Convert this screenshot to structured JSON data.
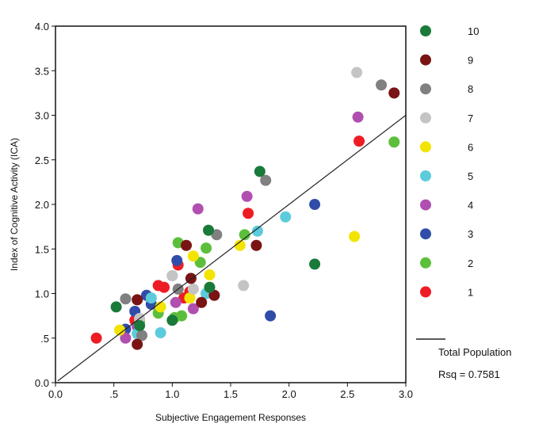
{
  "chart_data": {
    "type": "scatter",
    "xlabel": "Subjective Engagement Responses",
    "ylabel": "Index of Cognitive Activity (ICA)",
    "xlim": [
      0,
      3
    ],
    "ylim": [
      0,
      4
    ],
    "xticks": [
      {
        "v": 0,
        "label": "0.0"
      },
      {
        "v": 0.5,
        "label": ".5"
      },
      {
        "v": 1,
        "label": "1.0"
      },
      {
        "v": 1.5,
        "label": "1.5"
      },
      {
        "v": 2,
        "label": "2.0"
      },
      {
        "v": 2.5,
        "label": "2.5"
      },
      {
        "v": 3,
        "label": "3.0"
      }
    ],
    "yticks": [
      {
        "v": 0,
        "label": "0.0"
      },
      {
        "v": 0.5,
        "label": ".5"
      },
      {
        "v": 1,
        "label": "1.0"
      },
      {
        "v": 1.5,
        "label": "1.5"
      },
      {
        "v": 2,
        "label": "2.0"
      },
      {
        "v": 2.5,
        "label": "2.5"
      },
      {
        "v": 3,
        "label": "3.0"
      },
      {
        "v": 3.5,
        "label": "3.5"
      },
      {
        "v": 4,
        "label": "4.0"
      }
    ],
    "grid": false,
    "legend_position": "right",
    "series": [
      {
        "name": "10",
        "color": "#1a7a3a",
        "points": [
          [
            0.52,
            0.85
          ],
          [
            1.75,
            2.37
          ],
          [
            2.22,
            1.33
          ],
          [
            1.31,
            1.71
          ],
          [
            1.32,
            1.07
          ],
          [
            1.0,
            0.7
          ],
          [
            0.72,
            0.64
          ]
        ]
      },
      {
        "name": "9",
        "color": "#7a1414",
        "points": [
          [
            2.9,
            3.25
          ],
          [
            0.7,
            0.43
          ],
          [
            0.7,
            0.93
          ],
          [
            1.12,
            1.54
          ],
          [
            1.72,
            1.54
          ],
          [
            1.36,
            0.98
          ],
          [
            1.16,
            1.17
          ],
          [
            1.25,
            0.9
          ]
        ]
      },
      {
        "name": "8",
        "color": "#808080",
        "points": [
          [
            2.79,
            3.34
          ],
          [
            1.8,
            2.27
          ],
          [
            1.38,
            1.66
          ],
          [
            0.6,
            0.94
          ],
          [
            0.74,
            0.53
          ],
          [
            1.05,
            1.05
          ]
        ]
      },
      {
        "name": "7",
        "color": "#c4c4c4",
        "points": [
          [
            2.58,
            3.48
          ],
          [
            1.61,
            1.09
          ],
          [
            1.0,
            1.2
          ],
          [
            0.72,
            0.72
          ],
          [
            1.18,
            1.05
          ]
        ]
      },
      {
        "name": "6",
        "color": "#f2e400",
        "points": [
          [
            2.56,
            1.64
          ],
          [
            1.58,
            1.54
          ],
          [
            1.32,
            1.21
          ],
          [
            0.55,
            0.59
          ],
          [
            1.18,
            1.42
          ],
          [
            0.9,
            0.85
          ],
          [
            1.15,
            0.95
          ]
        ]
      },
      {
        "name": "5",
        "color": "#5ccbdc",
        "points": [
          [
            1.97,
            1.86
          ],
          [
            1.73,
            1.7
          ],
          [
            0.9,
            0.56
          ],
          [
            1.29,
            1.0
          ],
          [
            0.82,
            0.95
          ],
          [
            0.7,
            0.55
          ],
          [
            1.0,
            1.2
          ]
        ]
      },
      {
        "name": "4",
        "color": "#b04fb0",
        "points": [
          [
            2.59,
            2.98
          ],
          [
            1.64,
            2.09
          ],
          [
            1.22,
            1.95
          ],
          [
            0.6,
            0.5
          ],
          [
            1.03,
            0.9
          ],
          [
            1.18,
            0.83
          ],
          [
            0.7,
            0.63
          ]
        ]
      },
      {
        "name": "3",
        "color": "#2f4da8",
        "points": [
          [
            2.22,
            2.0
          ],
          [
            1.84,
            0.75
          ],
          [
            1.04,
            1.37
          ],
          [
            0.78,
            0.98
          ],
          [
            0.6,
            0.6
          ],
          [
            0.82,
            0.88
          ],
          [
            0.68,
            0.8
          ]
        ]
      },
      {
        "name": "2",
        "color": "#5cbf3c",
        "points": [
          [
            2.9,
            2.7
          ],
          [
            1.62,
            1.66
          ],
          [
            1.05,
            1.57
          ],
          [
            1.29,
            1.51
          ],
          [
            1.24,
            1.35
          ],
          [
            0.88,
            0.78
          ],
          [
            1.08,
            0.75
          ],
          [
            0.72,
            0.68
          ],
          [
            1.02,
            0.73
          ]
        ]
      },
      {
        "name": "1",
        "color": "#ee1c24",
        "points": [
          [
            0.35,
            0.5
          ],
          [
            2.6,
            2.71
          ],
          [
            1.65,
            1.9
          ],
          [
            0.88,
            1.09
          ],
          [
            0.93,
            1.07
          ],
          [
            1.05,
            1.32
          ],
          [
            0.68,
            0.7
          ],
          [
            1.15,
            1.02
          ],
          [
            1.1,
            0.95
          ]
        ]
      }
    ],
    "fit_line": {
      "name": "Total Population",
      "slope": 1.0,
      "intercept": 0.0,
      "rsq_label": "Rsq = 0.7581"
    }
  }
}
